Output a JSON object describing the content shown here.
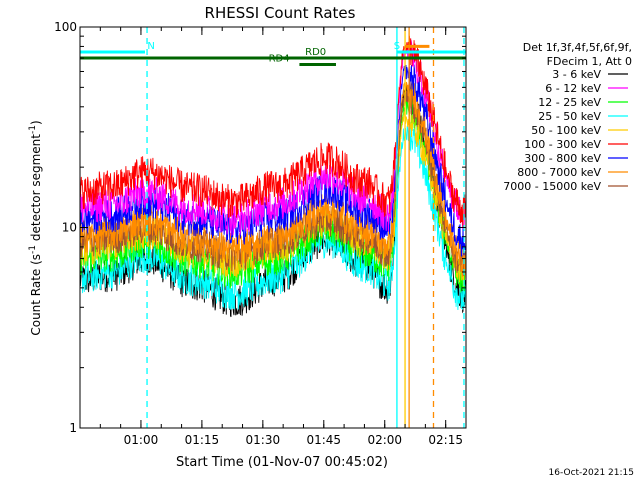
{
  "chart_data": {
    "type": "line",
    "title": "RHESSI Count Rates",
    "xlabel": "Start Time (01-Nov-07 00:45:02)",
    "ylabel": "Count Rate (s",
    "ylabel_sup": "-1",
    "ylabel_mid": " detector segment",
    "ylabel_sup2": "-1",
    "ylabel_end": ")",
    "y_scale": "log",
    "ylim": [
      1,
      100
    ],
    "y_ticks": [
      {
        "value": 1,
        "label": "1"
      },
      {
        "value": 10,
        "label": "10"
      },
      {
        "value": 100,
        "label": "100"
      }
    ],
    "x_range_minutes": [
      0,
      95
    ],
    "x_ticks": [
      {
        "t": 15,
        "label": "01:00"
      },
      {
        "t": 30,
        "label": "01:15"
      },
      {
        "t": 45,
        "label": "01:30"
      },
      {
        "t": 60,
        "label": "01:45"
      },
      {
        "t": 75,
        "label": "02:00"
      },
      {
        "t": 90,
        "label": "02:15"
      }
    ],
    "legend_header": [
      "Det 1f,3f,4f,5f,6f,9f,",
      "FDecim 1, Att 0"
    ],
    "series": [
      {
        "name": "3 - 6 keV",
        "color": "#000000",
        "peaks": [
          5.5,
          5.8,
          7.0,
          5.2,
          4.3,
          5.5,
          8.8,
          6.5,
          5.0,
          48,
          4.5
        ]
      },
      {
        "name": "6 - 12 keV",
        "color": "#ff00ff",
        "peaks": [
          12.5,
          13.0,
          15.0,
          12.5,
          11.0,
          13.0,
          18.0,
          14.0,
          11.5,
          75,
          11.5
        ]
      },
      {
        "name": "12 - 25 keV",
        "color": "#00ff00",
        "peaks": [
          7.0,
          7.3,
          8.5,
          6.8,
          6.0,
          7.0,
          9.8,
          7.5,
          6.5,
          40,
          5.5
        ]
      },
      {
        "name": "25 - 50 keV",
        "color": "#00ffff",
        "peaks": [
          5.6,
          6.0,
          7.2,
          5.5,
          4.7,
          5.6,
          8.6,
          6.4,
          5.2,
          30,
          4.3
        ]
      },
      {
        "name": "50 - 100 keV",
        "color": "#ffcc00",
        "peaks": [
          7.8,
          8.2,
          9.5,
          7.6,
          6.8,
          7.9,
          10.8,
          8.5,
          7.2,
          35,
          6.0
        ]
      },
      {
        "name": "100 - 300 keV",
        "color": "#ff0000",
        "peaks": [
          15.0,
          16.0,
          19.0,
          15.5,
          13.5,
          16.0,
          22.0,
          17.0,
          13.5,
          80,
          12.0
        ]
      },
      {
        "name": "300 - 800 keV",
        "color": "#0000ff",
        "peaks": [
          11.0,
          11.5,
          13.5,
          11.0,
          9.8,
          11.2,
          15.5,
          12.0,
          10.0,
          60,
          8.5
        ]
      },
      {
        "name": "800 - 7000 keV",
        "color": "#ff8c00",
        "peaks": [
          9.0,
          9.5,
          11.0,
          8.8,
          7.8,
          9.0,
          12.5,
          9.8,
          8.2,
          50,
          6.8
        ]
      },
      {
        "name": "7000 - 15000 keV",
        "color": "#a0522d",
        "peaks": [
          8.5,
          8.9,
          10.0,
          8.2,
          7.3,
          8.5,
          11.0,
          9.0,
          7.6,
          45,
          6.3
        ]
      }
    ],
    "series_time_knots": [
      0,
      8,
      16,
      28,
      38,
      48,
      61,
      70,
      76,
      80,
      95
    ],
    "annotations": {
      "bars": [
        {
          "label": "N",
          "color": "#00ffff",
          "t0": 0,
          "t1": 16,
          "y": 75,
          "label_t": 17.5
        },
        {
          "label": "",
          "color": "#006400",
          "t0": 0,
          "t1": 95,
          "y": 70
        },
        {
          "label": "RD0",
          "color": "#006400",
          "t0": 54,
          "t1": 62,
          "y": 70,
          "label_t": 58
        },
        {
          "label": "RD4",
          "color": "#006400",
          "t0": 54,
          "t1": 63,
          "y": 65,
          "label_t": 49
        },
        {
          "label": "S",
          "color": "#00ffff",
          "t0": 78,
          "t1": 95,
          "y": 75,
          "label_t": 78
        },
        {
          "label": "",
          "color": "#ff8c00",
          "t0": 80,
          "t1": 86,
          "y": 80
        }
      ],
      "vlines": [
        {
          "t": 16.5,
          "color": "#00ffff",
          "style": "dashed"
        },
        {
          "t": 78,
          "color": "#00ffff",
          "style": "solid"
        },
        {
          "t": 80,
          "color": "#ffcc00",
          "style": "solid"
        },
        {
          "t": 81,
          "color": "#ff8c00",
          "style": "solid"
        },
        {
          "t": 87,
          "color": "#ff8c00",
          "style": "dashed"
        },
        {
          "t": 94.5,
          "color": "#00ffff",
          "style": "dashed"
        }
      ]
    },
    "footer": "16-Oct-2021 21:15"
  }
}
